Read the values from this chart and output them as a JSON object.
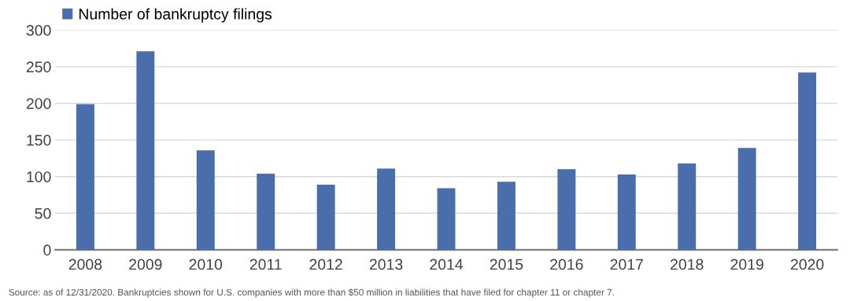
{
  "chart_data": {
    "type": "bar",
    "categories": [
      "2008",
      "2009",
      "2010",
      "2011",
      "2012",
      "2013",
      "2014",
      "2015",
      "2016",
      "2017",
      "2018",
      "2019",
      "2020"
    ],
    "series": [
      {
        "name": "Number of bankruptcy filings",
        "color": "#4a6dab",
        "values": [
          199,
          271,
          136,
          104,
          89,
          111,
          84,
          93,
          110,
          103,
          118,
          139,
          242
        ]
      }
    ],
    "ylim": [
      0,
      300
    ],
    "yticks": [
      0,
      50,
      100,
      150,
      200,
      250,
      300
    ],
    "grid": "y",
    "legend": "top left",
    "annotations": [
      "Source: as of 12/31/2020. Bankruptcies shown for U.S. companies with more than $50 million in liabilities that have filed for chapter 11 or chapter 7."
    ]
  }
}
